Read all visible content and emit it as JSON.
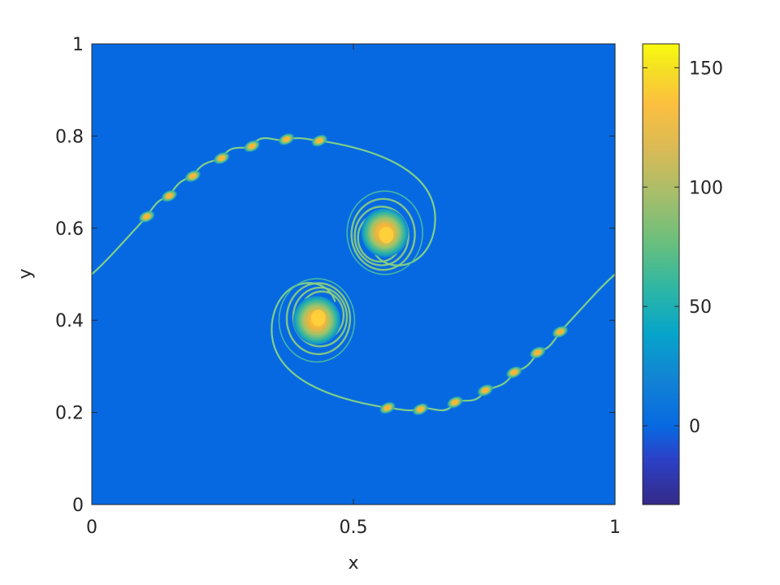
{
  "chart_data": {
    "type": "heatmap",
    "title": "",
    "xlabel": "x",
    "ylabel": "y",
    "xlim": [
      0,
      1
    ],
    "ylim": [
      0,
      1
    ],
    "x_ticks": [
      0,
      0.5,
      1
    ],
    "x_tick_labels": [
      "0",
      "0.5",
      "1"
    ],
    "y_ticks": [
      0,
      0.2,
      0.4,
      0.6,
      0.8,
      1
    ],
    "y_tick_labels": [
      "0",
      "0.2",
      "0.4",
      "0.6",
      "0.8",
      "1"
    ],
    "colorbar": {
      "colormap": "parula",
      "limits": [
        -33,
        160
      ],
      "ticks": [
        0,
        50,
        100,
        150
      ],
      "tick_labels": [
        "0",
        "50",
        "100",
        "150"
      ]
    },
    "background_value": 0,
    "grid": false,
    "features": {
      "vortex_cores": [
        {
          "x": 0.56,
          "y": 0.59,
          "peak": 150
        },
        {
          "x": 0.43,
          "y": 0.4,
          "peak": 150
        }
      ],
      "upper_left_small_vortices": [
        {
          "x": 0.105,
          "y": 0.625
        },
        {
          "x": 0.148,
          "y": 0.67
        },
        {
          "x": 0.193,
          "y": 0.713
        },
        {
          "x": 0.248,
          "y": 0.752
        },
        {
          "x": 0.306,
          "y": 0.778
        },
        {
          "x": 0.372,
          "y": 0.793
        }
      ],
      "lower_right_small_vortices": [
        {
          "x": 0.628,
          "y": 0.207
        },
        {
          "x": 0.694,
          "y": 0.222
        },
        {
          "x": 0.752,
          "y": 0.248
        },
        {
          "x": 0.807,
          "y": 0.287
        },
        {
          "x": 0.852,
          "y": 0.33
        },
        {
          "x": 0.895,
          "y": 0.375
        }
      ]
    },
    "colors": {
      "background": "#0769e1",
      "filament": "#7fcf88",
      "core": "#f7b637",
      "core_inner": "#ffd23a"
    }
  }
}
